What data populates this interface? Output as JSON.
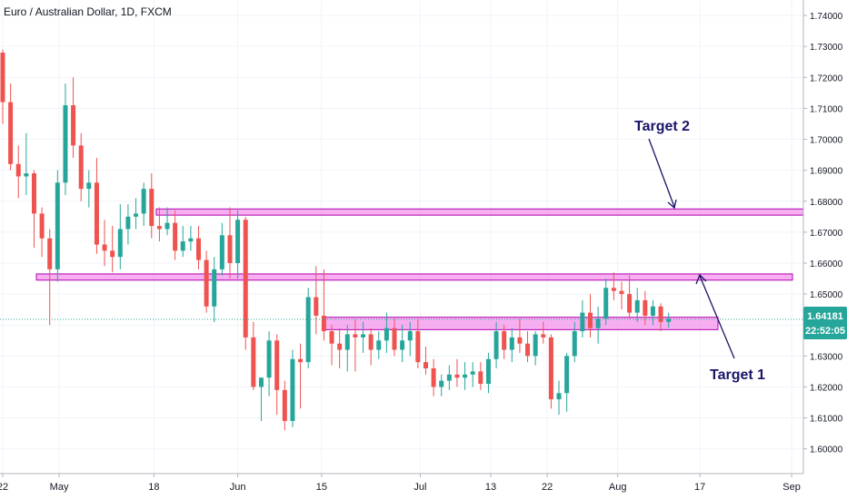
{
  "header": {
    "title": "Euro / Australian Dollar, 1D, FXCM"
  },
  "price_axis": {
    "current_price": "1.64181",
    "countdown": "22:52:05",
    "ticks": [
      "1.74000",
      "1.73000",
      "1.72000",
      "1.71000",
      "1.70000",
      "1.69000",
      "1.68000",
      "1.67000",
      "1.66000",
      "1.65000",
      "1.64000",
      "1.63000",
      "1.62000",
      "1.61000",
      "1.60000"
    ]
  },
  "time_axis": {
    "labels": [
      "22",
      "May",
      "18",
      "Jun",
      "15",
      "Jul",
      "13",
      "22",
      "Aug",
      "17",
      "Sep"
    ]
  },
  "annotations": {
    "target1": "Target 1",
    "target2": "Target 2"
  },
  "colors": {
    "up": "#26a69a",
    "down": "#ef5350",
    "zone_fill": "#f26ee8",
    "zone_border": "#b000b0",
    "arrow": "#1a1567",
    "price_line": "#26a69a",
    "price_label_bg": "#26a69a"
  },
  "chart_data": {
    "type": "candlestick",
    "title": "Euro / Australian Dollar, 1D, FXCM",
    "yrange": [
      1.592,
      1.745
    ],
    "x_tick_labels": [
      "22",
      "May",
      "18",
      "Jun",
      "15",
      "Jul",
      "13",
      "22",
      "Aug",
      "17",
      "Sep"
    ],
    "current_price": 1.64181,
    "zones": [
      {
        "from_label": "18",
        "to": "right-edge",
        "low": 1.6755,
        "high": 1.6775
      },
      {
        "from_label": "22",
        "to_index": "last+19",
        "low": 1.6545,
        "high": 1.6565
      },
      {
        "from_label": "15",
        "to_index": "last+8",
        "low": 1.6385,
        "high": 1.6425
      }
    ],
    "annotations": [
      {
        "text": "Target 2",
        "points_to": 1.676
      },
      {
        "text": "Target 1",
        "points_to": 1.656
      }
    ],
    "candles": [
      [
        1.728,
        1.729,
        1.705,
        1.712
      ],
      [
        1.712,
        1.718,
        1.69,
        1.692
      ],
      [
        1.692,
        1.698,
        1.681,
        1.688
      ],
      [
        1.688,
        1.702,
        1.682,
        1.689
      ],
      [
        1.689,
        1.69,
        1.665,
        1.676
      ],
      [
        1.676,
        1.678,
        1.662,
        1.668
      ],
      [
        1.668,
        1.671,
        1.64,
        1.658
      ],
      [
        1.658,
        1.69,
        1.654,
        1.686
      ],
      [
        1.686,
        1.718,
        1.682,
        1.711
      ],
      [
        1.711,
        1.72,
        1.694,
        1.698
      ],
      [
        1.698,
        1.702,
        1.68,
        1.684
      ],
      [
        1.684,
        1.69,
        1.678,
        1.686
      ],
      [
        1.686,
        1.694,
        1.663,
        1.666
      ],
      [
        1.666,
        1.674,
        1.659,
        1.664
      ],
      [
        1.664,
        1.672,
        1.657,
        1.662
      ],
      [
        1.662,
        1.679,
        1.658,
        1.671
      ],
      [
        1.671,
        1.679,
        1.666,
        1.675
      ],
      [
        1.675,
        1.681,
        1.671,
        1.676
      ],
      [
        1.676,
        1.686,
        1.672,
        1.684
      ],
      [
        1.684,
        1.689,
        1.668,
        1.672
      ],
      [
        1.672,
        1.678,
        1.667,
        1.671
      ],
      [
        1.671,
        1.678,
        1.669,
        1.673
      ],
      [
        1.673,
        1.677,
        1.661,
        1.664
      ],
      [
        1.664,
        1.672,
        1.662,
        1.667
      ],
      [
        1.667,
        1.672,
        1.664,
        1.668
      ],
      [
        1.668,
        1.672,
        1.658,
        1.661
      ],
      [
        1.661,
        1.664,
        1.644,
        1.646
      ],
      [
        1.646,
        1.662,
        1.641,
        1.658
      ],
      [
        1.658,
        1.673,
        1.656,
        1.669
      ],
      [
        1.669,
        1.678,
        1.655,
        1.66
      ],
      [
        1.66,
        1.677,
        1.655,
        1.674
      ],
      [
        1.674,
        1.675,
        1.632,
        1.636
      ],
      [
        1.636,
        1.641,
        1.619,
        1.62
      ],
      [
        1.62,
        1.623,
        1.609,
        1.623
      ],
      [
        1.623,
        1.638,
        1.617,
        1.635
      ],
      [
        1.635,
        1.637,
        1.611,
        1.619
      ],
      [
        1.619,
        1.622,
        1.606,
        1.609
      ],
      [
        1.609,
        1.632,
        1.607,
        1.629
      ],
      [
        1.629,
        1.634,
        1.613,
        1.628
      ],
      [
        1.628,
        1.652,
        1.626,
        1.649
      ],
      [
        1.649,
        1.659,
        1.637,
        1.643
      ],
      [
        1.643,
        1.658,
        1.635,
        1.638
      ],
      [
        1.638,
        1.64,
        1.627,
        1.634
      ],
      [
        1.634,
        1.639,
        1.626,
        1.632
      ],
      [
        1.632,
        1.64,
        1.625,
        1.637
      ],
      [
        1.637,
        1.642,
        1.625,
        1.636
      ],
      [
        1.636,
        1.641,
        1.631,
        1.637
      ],
      [
        1.637,
        1.639,
        1.627,
        1.632
      ],
      [
        1.632,
        1.638,
        1.629,
        1.635
      ],
      [
        1.635,
        1.644,
        1.631,
        1.639
      ],
      [
        1.639,
        1.642,
        1.63,
        1.632
      ],
      [
        1.632,
        1.64,
        1.628,
        1.635
      ],
      [
        1.635,
        1.641,
        1.63,
        1.638
      ],
      [
        1.638,
        1.642,
        1.626,
        1.628
      ],
      [
        1.628,
        1.633,
        1.624,
        1.626
      ],
      [
        1.626,
        1.629,
        1.617,
        1.62
      ],
      [
        1.62,
        1.624,
        1.617,
        1.622
      ],
      [
        1.622,
        1.627,
        1.619,
        1.624
      ],
      [
        1.624,
        1.629,
        1.62,
        1.623
      ],
      [
        1.623,
        1.628,
        1.619,
        1.624
      ],
      [
        1.624,
        1.628,
        1.62,
        1.625
      ],
      [
        1.625,
        1.628,
        1.619,
        1.621
      ],
      [
        1.621,
        1.631,
        1.618,
        1.629
      ],
      [
        1.629,
        1.641,
        1.626,
        1.638
      ],
      [
        1.638,
        1.64,
        1.629,
        1.632
      ],
      [
        1.632,
        1.639,
        1.628,
        1.636
      ],
      [
        1.636,
        1.642,
        1.631,
        1.634
      ],
      [
        1.634,
        1.638,
        1.628,
        1.63
      ],
      [
        1.63,
        1.638,
        1.627,
        1.637
      ],
      [
        1.637,
        1.641,
        1.634,
        1.636
      ],
      [
        1.636,
        1.637,
        1.613,
        1.616
      ],
      [
        1.616,
        1.622,
        1.611,
        1.618
      ],
      [
        1.618,
        1.631,
        1.612,
        1.63
      ],
      [
        1.63,
        1.641,
        1.628,
        1.638
      ],
      [
        1.638,
        1.648,
        1.636,
        1.644
      ],
      [
        1.644,
        1.65,
        1.636,
        1.639
      ],
      [
        1.639,
        1.646,
        1.634,
        1.642
      ],
      [
        1.642,
        1.655,
        1.64,
        1.652
      ],
      [
        1.652,
        1.657,
        1.648,
        1.651
      ],
      [
        1.651,
        1.654,
        1.645,
        1.65
      ],
      [
        1.65,
        1.656,
        1.642,
        1.644
      ],
      [
        1.644,
        1.652,
        1.641,
        1.648
      ],
      [
        1.648,
        1.651,
        1.64,
        1.643
      ],
      [
        1.643,
        1.648,
        1.64,
        1.646
      ],
      [
        1.646,
        1.647,
        1.638,
        1.641
      ],
      [
        1.641,
        1.644,
        1.639,
        1.642
      ]
    ]
  }
}
